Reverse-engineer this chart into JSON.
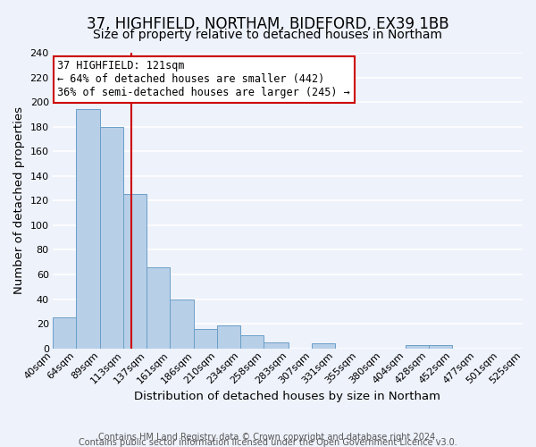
{
  "title": "37, HIGHFIELD, NORTHAM, BIDEFORD, EX39 1BB",
  "subtitle": "Size of property relative to detached houses in Northam",
  "xlabel": "Distribution of detached houses by size in Northam",
  "ylabel": "Number of detached properties",
  "bar_edges": [
    40,
    64,
    89,
    113,
    137,
    161,
    186,
    210,
    234,
    258,
    283,
    307,
    331,
    355,
    380,
    404,
    428,
    452,
    477,
    501,
    525
  ],
  "bar_heights": [
    25,
    194,
    180,
    125,
    66,
    40,
    16,
    19,
    11,
    5,
    0,
    4,
    0,
    0,
    0,
    3,
    3,
    0,
    0,
    0
  ],
  "bar_color": "#b8cfe8",
  "bar_edge_color": "#6a9fc8",
  "background_color": "#eef2fb",
  "grid_color": "#ffffff",
  "ylim": [
    0,
    240
  ],
  "yticks": [
    0,
    20,
    40,
    60,
    80,
    100,
    120,
    140,
    160,
    180,
    200,
    220,
    240
  ],
  "xtick_labels": [
    "40sqm",
    "64sqm",
    "89sqm",
    "113sqm",
    "137sqm",
    "161sqm",
    "186sqm",
    "210sqm",
    "234sqm",
    "258sqm",
    "283sqm",
    "307sqm",
    "331sqm",
    "355sqm",
    "380sqm",
    "404sqm",
    "428sqm",
    "452sqm",
    "477sqm",
    "501sqm",
    "525sqm"
  ],
  "annotation_line1": "37 HIGHFIELD: 121sqm",
  "annotation_line2": "← 64% of detached houses are smaller (442)",
  "annotation_line3": "36% of semi-detached houses are larger (245) →",
  "vline_x": 121,
  "vline_color": "#cc0000",
  "footer_line1": "Contains HM Land Registry data © Crown copyright and database right 2024.",
  "footer_line2": "Contains public sector information licensed under the Open Government Licence v3.0.",
  "title_fontsize": 12,
  "subtitle_fontsize": 10,
  "axis_label_fontsize": 9.5,
  "tick_fontsize": 8,
  "annotation_fontsize": 8.5,
  "footer_fontsize": 7
}
